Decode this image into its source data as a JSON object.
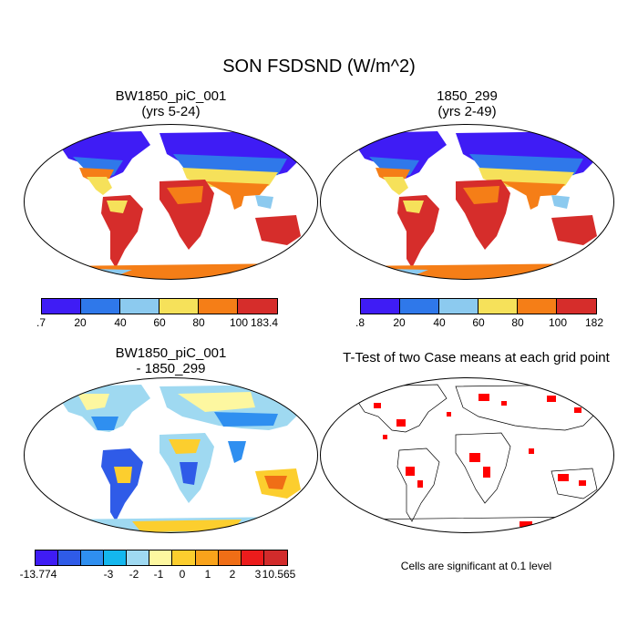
{
  "figure": {
    "title": "SON FSDSND (W/m^2)"
  },
  "panels": [
    {
      "id": "case1",
      "title_line1": "BW1850_piC_001",
      "title_line2": "(yrs 5-24)",
      "colorbar": {
        "colors": [
          "#3f1cf5",
          "#2f78ea",
          "#8ccaef",
          "#f6e15a",
          "#f57e17",
          "#d62d2b"
        ],
        "labels": [
          ".7",
          "20",
          "40",
          "60",
          "80",
          "100",
          "183.4"
        ]
      }
    },
    {
      "id": "case2",
      "title_line1": "1850_299",
      "title_line2": "(yrs 2-49)",
      "colorbar": {
        "colors": [
          "#3f1cf5",
          "#2f78ea",
          "#8ccaef",
          "#f6e15a",
          "#f57e17",
          "#d62d2b"
        ],
        "labels": [
          ".8",
          "20",
          "40",
          "60",
          "80",
          "100",
          "182"
        ]
      }
    },
    {
      "id": "diff",
      "title_line1": "BW1850_piC_001",
      "title_line2": "- 1850_299",
      "colorbar": {
        "colors": [
          "#3f1cf5",
          "#2f5be8",
          "#2f8ff0",
          "#14b7ee",
          "#9fd9f1",
          "#fdf7a0",
          "#fcce2e",
          "#f9a31b",
          "#f06e16",
          "#ec1c1c",
          "#d22b2b"
        ],
        "labels": [
          "-13.774",
          "-3",
          "-2",
          "-1",
          "0",
          "1",
          "2",
          "3",
          "10.565"
        ]
      }
    },
    {
      "id": "ttest",
      "title_line1": "T-Test of two Case means at each grid point",
      "note": "Cells are significant at 0.1 level",
      "significance_color": "#ff0000"
    }
  ]
}
